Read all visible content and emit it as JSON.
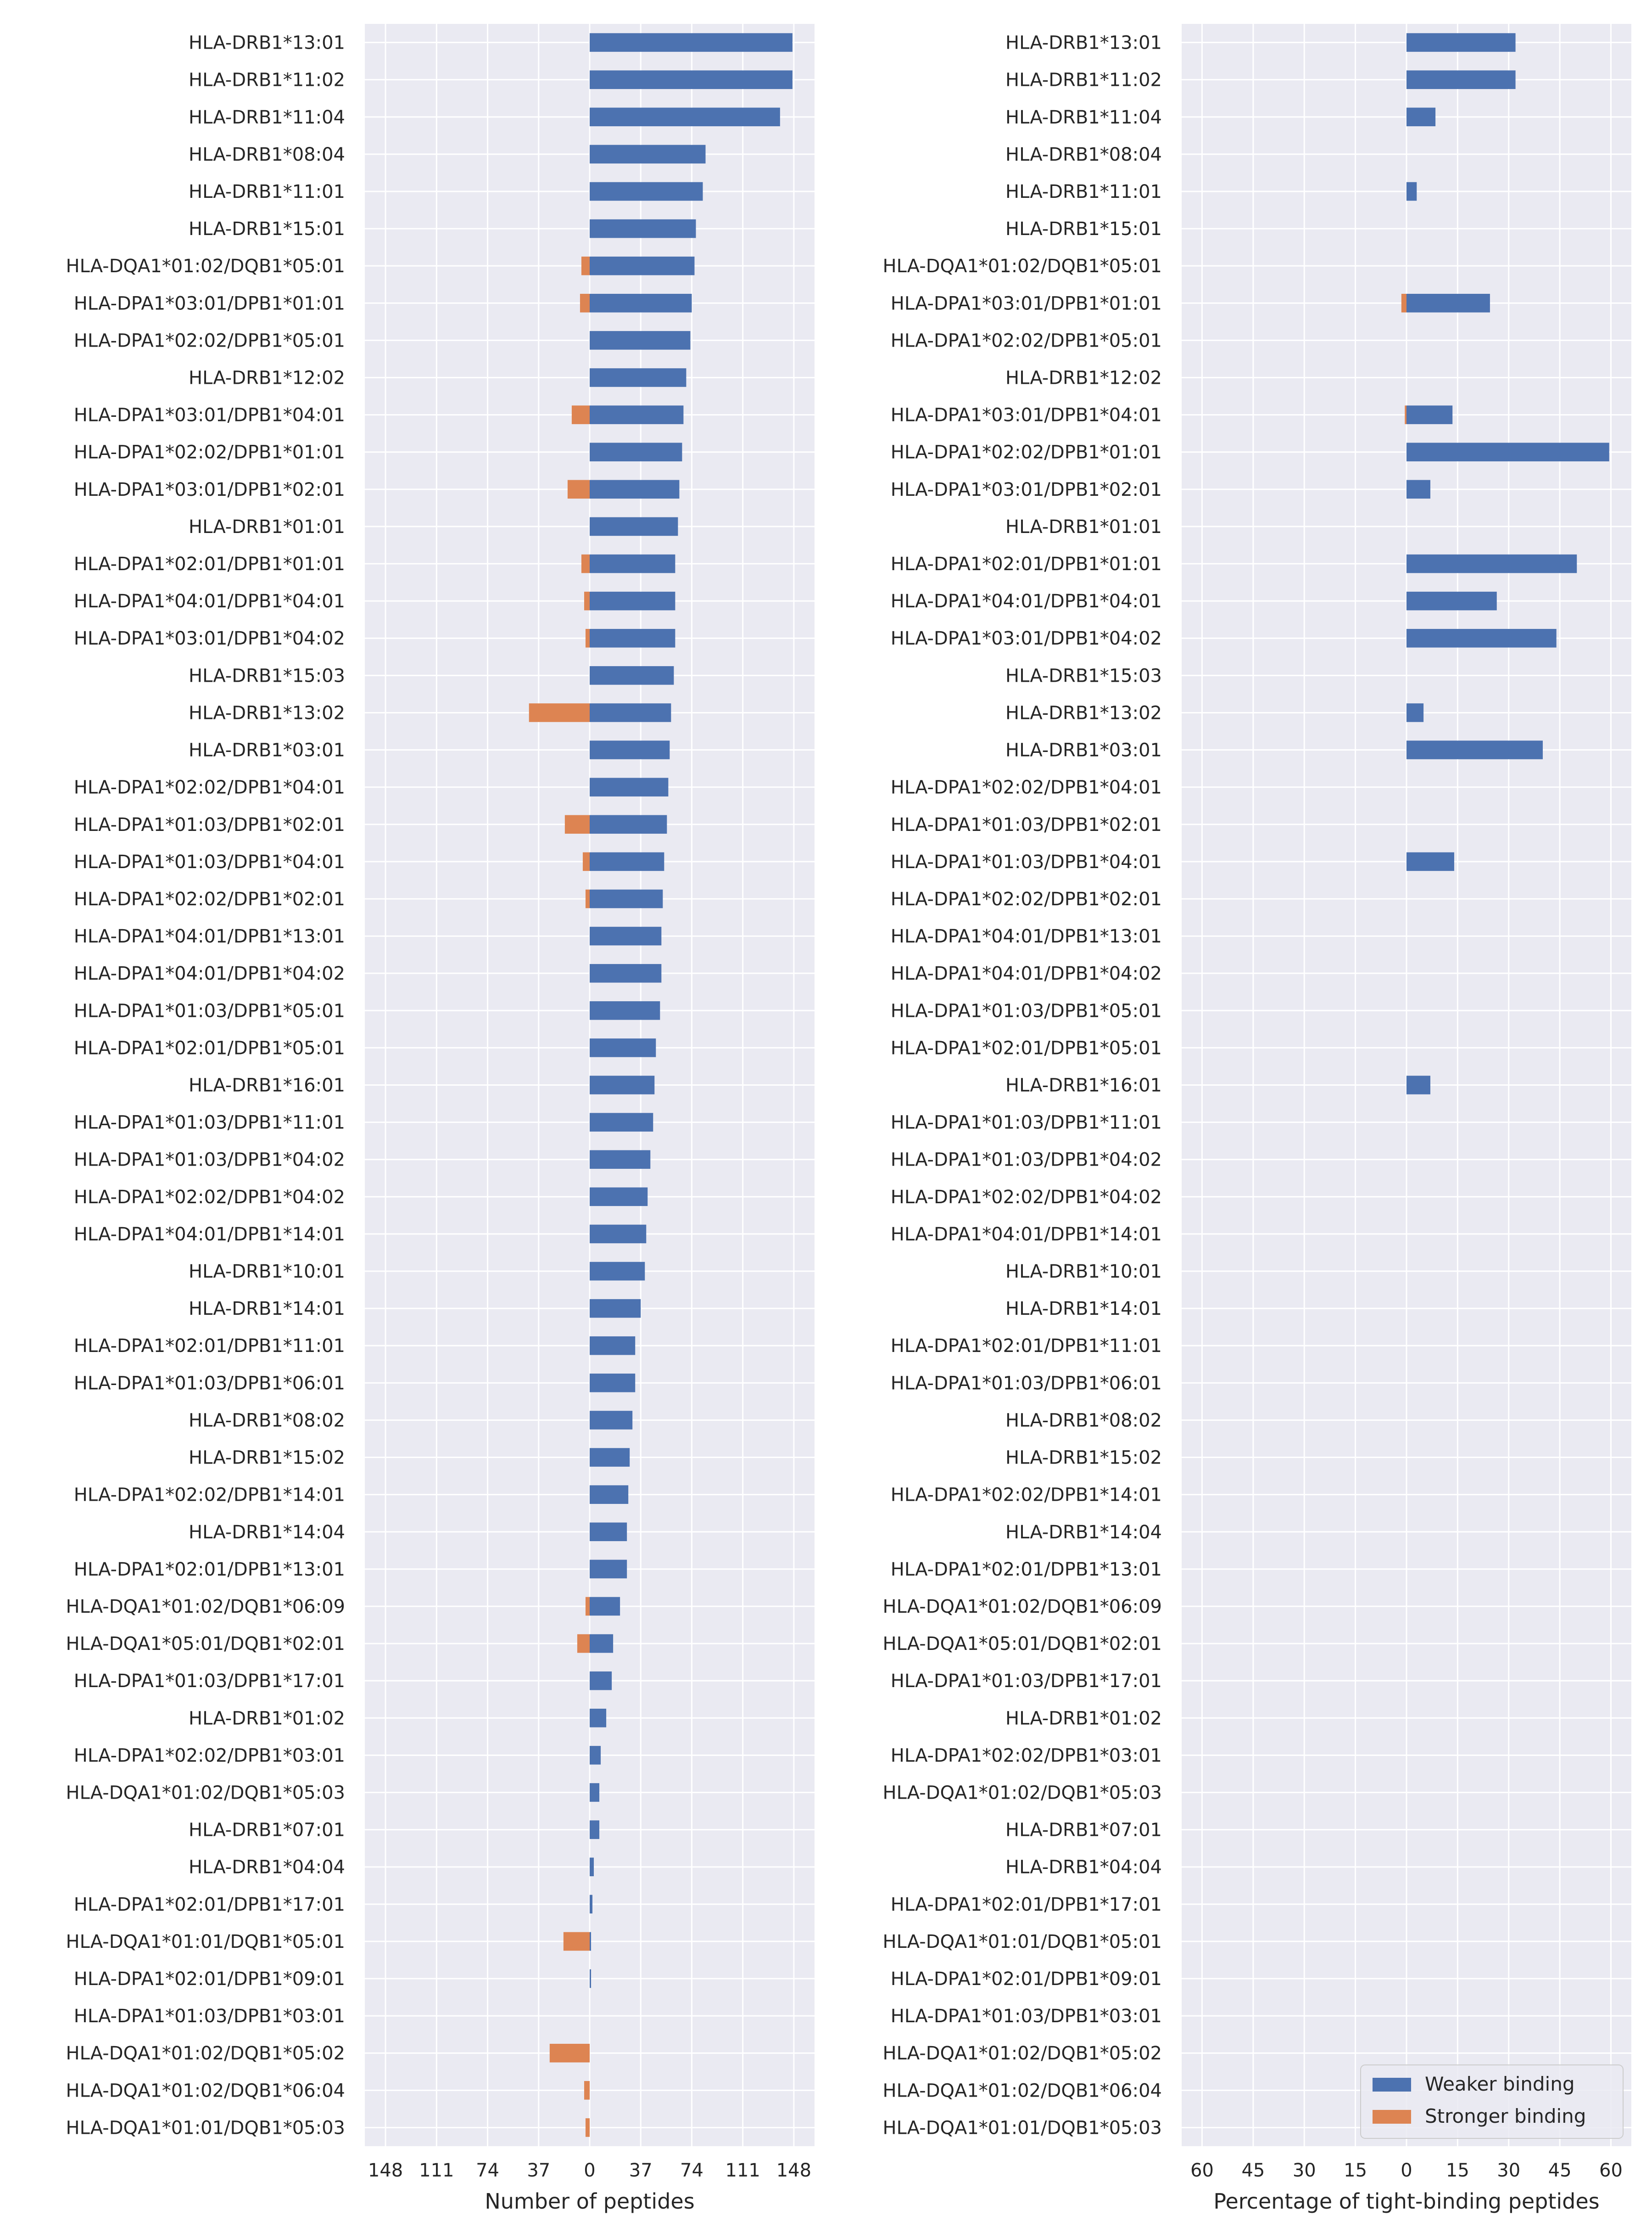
{
  "colors": {
    "weaker": "#4c72b0",
    "stronger": "#dd8452",
    "panel_bg": "#eaeaf2",
    "grid": "#ffffff",
    "text": "#262626"
  },
  "alleles": [
    "HLA-DRB1*13:01",
    "HLA-DRB1*11:02",
    "HLA-DRB1*11:04",
    "HLA-DRB1*08:04",
    "HLA-DRB1*11:01",
    "HLA-DRB1*15:01",
    "HLA-DQA1*01:02/DQB1*05:01",
    "HLA-DPA1*03:01/DPB1*01:01",
    "HLA-DPA1*02:02/DPB1*05:01",
    "HLA-DRB1*12:02",
    "HLA-DPA1*03:01/DPB1*04:01",
    "HLA-DPA1*02:02/DPB1*01:01",
    "HLA-DPA1*03:01/DPB1*02:01",
    "HLA-DRB1*01:01",
    "HLA-DPA1*02:01/DPB1*01:01",
    "HLA-DPA1*04:01/DPB1*04:01",
    "HLA-DPA1*03:01/DPB1*04:02",
    "HLA-DRB1*15:03",
    "HLA-DRB1*13:02",
    "HLA-DRB1*03:01",
    "HLA-DPA1*02:02/DPB1*04:01",
    "HLA-DPA1*01:03/DPB1*02:01",
    "HLA-DPA1*01:03/DPB1*04:01",
    "HLA-DPA1*02:02/DPB1*02:01",
    "HLA-DPA1*04:01/DPB1*13:01",
    "HLA-DPA1*04:01/DPB1*04:02",
    "HLA-DPA1*01:03/DPB1*05:01",
    "HLA-DPA1*02:01/DPB1*05:01",
    "HLA-DRB1*16:01",
    "HLA-DPA1*01:03/DPB1*11:01",
    "HLA-DPA1*01:03/DPB1*04:02",
    "HLA-DPA1*02:02/DPB1*04:02",
    "HLA-DPA1*04:01/DPB1*14:01",
    "HLA-DRB1*10:01",
    "HLA-DRB1*14:01",
    "HLA-DPA1*02:01/DPB1*11:01",
    "HLA-DPA1*01:03/DPB1*06:01",
    "HLA-DRB1*08:02",
    "HLA-DRB1*15:02",
    "HLA-DPA1*02:02/DPB1*14:01",
    "HLA-DRB1*14:04",
    "HLA-DPA1*02:01/DPB1*13:01",
    "HLA-DQA1*01:02/DQB1*06:09",
    "HLA-DQA1*05:01/DQB1*02:01",
    "HLA-DPA1*01:03/DPB1*17:01",
    "HLA-DRB1*01:02",
    "HLA-DPA1*02:02/DPB1*03:01",
    "HLA-DQA1*01:02/DQB1*05:03",
    "HLA-DRB1*07:01",
    "HLA-DRB1*04:04",
    "HLA-DPA1*02:01/DPB1*17:01",
    "HLA-DQA1*01:01/DQB1*05:01",
    "HLA-DPA1*02:01/DPB1*09:01",
    "HLA-DPA1*01:03/DPB1*03:01",
    "HLA-DQA1*01:02/DQB1*05:02",
    "HLA-DQA1*01:02/DQB1*06:04",
    "HLA-DQA1*01:01/DQB1*05:03"
  ],
  "chart_data": [
    {
      "type": "bar",
      "orientation": "horizontal",
      "xlabel": "Number of peptides",
      "xticks": [
        -148,
        -111,
        -74,
        -37,
        0,
        37,
        74,
        111,
        148
      ],
      "xtick_labels": [
        "148",
        "111",
        "74",
        "37",
        "0",
        "37",
        "74",
        "111",
        "148"
      ],
      "xlim": [
        -163,
        163
      ],
      "grid": true,
      "series": [
        {
          "name": "Weaker binding",
          "values": [
            147,
            147,
            138,
            84,
            82,
            77,
            76,
            74,
            73,
            70,
            68,
            67,
            65,
            64,
            62,
            62,
            62,
            61,
            59,
            58,
            57,
            56,
            54,
            53,
            52,
            52,
            51,
            48,
            47,
            46,
            44,
            42,
            41,
            40,
            37,
            33,
            33,
            31,
            29,
            28,
            27,
            27,
            22,
            17,
            16,
            12,
            8,
            7,
            7,
            3,
            2,
            1,
            1,
            0,
            0,
            0,
            0
          ]
        },
        {
          "name": "Stronger binding",
          "values": [
            0,
            0,
            0,
            0,
            0,
            0,
            6,
            7,
            0,
            0,
            13,
            0,
            16,
            0,
            6,
            4,
            3,
            0,
            44,
            0,
            0,
            18,
            5,
            3,
            0,
            0,
            0,
            0,
            0,
            0,
            0,
            0,
            0,
            0,
            0,
            0,
            0,
            0,
            0,
            0,
            0,
            0,
            3,
            9,
            0,
            0,
            0,
            0,
            0,
            0,
            0,
            19,
            0,
            0,
            29,
            4,
            3
          ]
        }
      ]
    },
    {
      "type": "bar",
      "orientation": "horizontal",
      "xlabel": "Percentage of tight-binding peptides",
      "xticks": [
        -60,
        -45,
        -30,
        -15,
        0,
        15,
        30,
        45,
        60
      ],
      "xtick_labels": [
        "60",
        "45",
        "30",
        "15",
        "0",
        "15",
        "30",
        "45",
        "60"
      ],
      "xlim": [
        -66,
        66
      ],
      "grid": true,
      "legend": {
        "position": "bottom-right",
        "entries": [
          "Weaker binding",
          "Stronger binding"
        ]
      },
      "series": [
        {
          "name": "Weaker binding",
          "values": [
            32,
            32,
            8.5,
            0,
            3,
            0,
            0,
            24.5,
            0,
            0,
            13.5,
            59.5,
            7,
            0,
            50,
            26.5,
            44,
            0,
            5,
            40,
            0,
            0,
            14,
            0,
            0,
            0,
            0,
            0,
            7,
            0,
            0,
            0,
            0,
            0,
            0,
            0,
            0,
            0,
            0,
            0,
            0,
            0,
            0,
            0,
            0,
            0,
            0,
            0,
            0,
            0,
            0,
            0,
            0,
            0,
            0,
            0,
            0
          ]
        },
        {
          "name": "Stronger binding",
          "values": [
            0,
            0,
            0,
            0,
            0,
            0,
            0,
            1.5,
            0,
            0,
            0.5,
            0,
            0,
            0,
            0,
            0,
            0,
            0,
            0,
            0,
            0,
            0,
            0,
            0,
            0,
            0,
            0,
            0,
            0,
            0,
            0,
            0,
            0,
            0,
            0,
            0,
            0,
            0,
            0,
            0,
            0,
            0,
            0,
            0,
            0,
            0,
            0,
            0,
            0,
            0,
            0,
            0,
            0,
            0,
            0,
            0,
            0
          ]
        }
      ]
    }
  ]
}
